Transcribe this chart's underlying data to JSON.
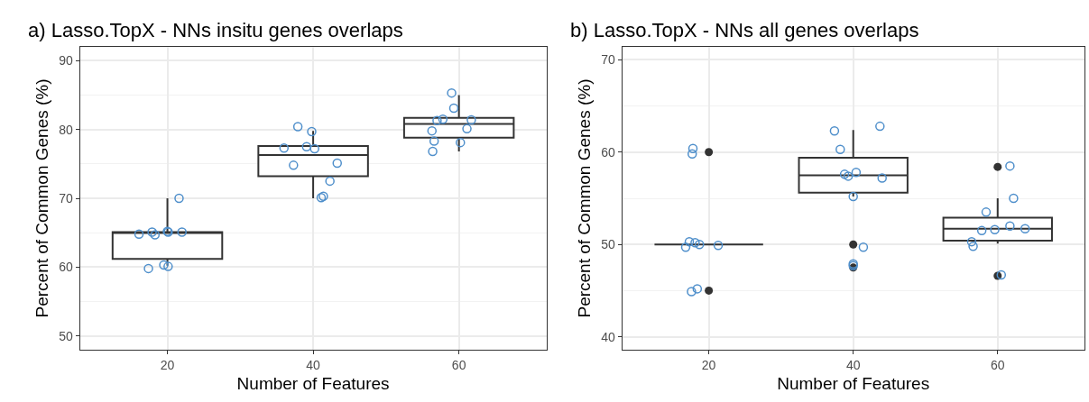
{
  "chart_data": [
    {
      "type": "box",
      "title": "a) Lasso.TopX - NNs insitu genes overlaps",
      "xlabel": "Number of Features",
      "ylabel": "Percent of Common Genes (%)",
      "x": [
        20,
        40,
        60
      ],
      "xlim": [
        8,
        72
      ],
      "xticks": [
        20,
        40,
        60
      ],
      "ylim": [
        48,
        92
      ],
      "yticks": [
        50,
        60,
        70,
        80,
        90
      ],
      "grid": true,
      "color": "#333333",
      "boxes": [
        {
          "low": 60.2,
          "q1": 61.2,
          "median": 65,
          "q3": 65.1,
          "high": 70
        },
        {
          "low": 70,
          "q1": 73.2,
          "median": 76.3,
          "q3": 77.6,
          "high": 79.8
        },
        {
          "low": 76.8,
          "q1": 78.8,
          "median": 80.8,
          "q3": 81.7,
          "high": 85
        }
      ],
      "series": [
        {
          "type": "scatter",
          "color": "#4f8fcb",
          "marker": "circle",
          "x": [
            16.1,
            17.9,
            18.3,
            20,
            20.1,
            22,
            21.6,
            17.4,
            19.5,
            20.1,
            36,
            37.9,
            39.8,
            39.1,
            40.2,
            37.3,
            43.3,
            42.3,
            41.1,
            41.4,
            59,
            59.3,
            57,
            57.8,
            61.7,
            61.1,
            56.3,
            56.6,
            60.2,
            56.4
          ],
          "values": [
            64.8,
            65.1,
            64.7,
            65.2,
            65.1,
            65.1,
            70,
            59.8,
            60.3,
            60.1,
            77.3,
            80.4,
            79.7,
            77.5,
            77.2,
            74.8,
            75.1,
            72.5,
            70.1,
            70.3,
            85.3,
            83.1,
            81.3,
            81.5,
            81.4,
            80.1,
            79.8,
            78.3,
            78.1,
            76.8
          ]
        }
      ]
    },
    {
      "type": "box",
      "title": "b) Lasso.TopX - NNs all genes overlaps",
      "xlabel": "Number of Features",
      "ylabel": "Percent of Common Genes (%)",
      "x": [
        20,
        40,
        60
      ],
      "xlim": [
        8,
        72
      ],
      "xticks": [
        20,
        40,
        60
      ],
      "ylim": [
        38.6,
        71.4
      ],
      "yticks": [
        40,
        50,
        60,
        70
      ],
      "grid": true,
      "color": "#333333",
      "boxes": [
        {
          "low": 50,
          "q1": 50,
          "median": 50,
          "q3": 50,
          "high": 50,
          "outliers": [
            60,
            45
          ]
        },
        {
          "low": 55.2,
          "q1": 55.6,
          "median": 57.5,
          "q3": 59.4,
          "high": 62.4,
          "outliers": [
            50,
            47.5
          ]
        },
        {
          "low": 50.1,
          "q1": 50.4,
          "median": 51.7,
          "q3": 52.9,
          "high": 55,
          "outliers": [
            58.4,
            46.6
          ]
        }
      ],
      "series": [
        {
          "type": "scatter",
          "color": "#4f8fcb",
          "marker": "circle",
          "x": [
            17.8,
            17.7,
            17.3,
            18.1,
            18.7,
            16.8,
            21.3,
            17.6,
            18.4,
            37.4,
            43.7,
            38.2,
            38.8,
            39.3,
            40.4,
            44,
            40,
            41.4,
            40,
            40,
            61.7,
            62.2,
            58.4,
            57.8,
            59.6,
            61.7,
            63.8,
            56.4,
            56.6,
            60.5
          ],
          "values": [
            60.4,
            59.8,
            50.3,
            50.2,
            50,
            49.7,
            49.9,
            44.9,
            45.2,
            62.3,
            62.8,
            60.3,
            57.6,
            57.4,
            57.8,
            57.2,
            55.2,
            49.7,
            47.9,
            47.7,
            58.5,
            55,
            53.5,
            51.5,
            51.6,
            52,
            51.7,
            50.3,
            49.8,
            46.7
          ]
        }
      ]
    }
  ]
}
